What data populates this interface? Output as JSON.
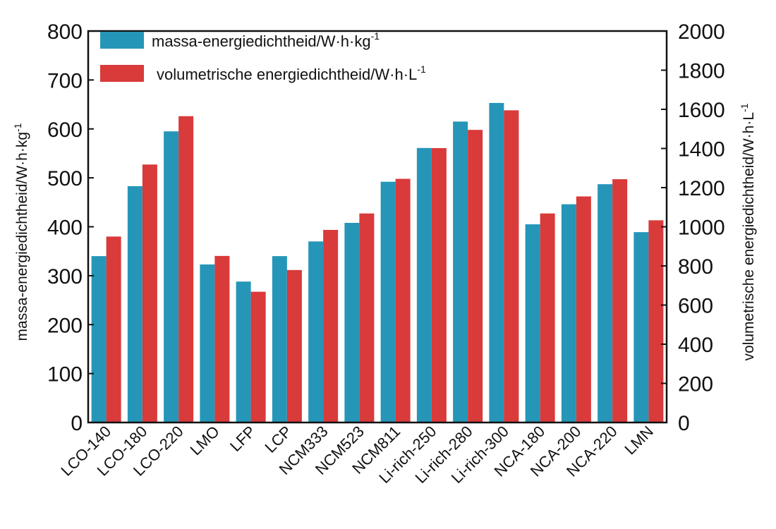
{
  "chart_data": {
    "type": "bar",
    "categories": [
      "LCO-140",
      "LCO-180",
      "LCO-220",
      "LMO",
      "LFP",
      "LCP",
      "NCM333",
      "NCM523",
      "NCM811",
      "Li-rich-250",
      "Li-rich-280",
      "Li-rich-300",
      "NCA-180",
      "NCA-200",
      "NCA-220",
      "LMN"
    ],
    "series": [
      {
        "name": "massa-energiedichtheid/W·h·kg",
        "name_sup": "-1",
        "axis": "left",
        "color": "#2596b8",
        "values": [
          340,
          483,
          595,
          323,
          288,
          340,
          370,
          408,
          492,
          561,
          615,
          653,
          405,
          446,
          487,
          389
        ]
      },
      {
        "name": "volumetrische energiedichtheid/W·h·L",
        "name_sup": "-1",
        "axis": "right",
        "color": "#d93a3a",
        "values": [
          950,
          1318,
          1565,
          851,
          668,
          779,
          984,
          1068,
          1245,
          1402,
          1495,
          1595,
          1068,
          1155,
          1243,
          1033
        ]
      }
    ],
    "ylabel": "massa-energiedichtheid/W·h·kg",
    "ylabel_sup": "-1",
    "y2label": "volumetrische energiedichtheid/W·h·L",
    "y2label_sup": "-1",
    "ylim": [
      0,
      800
    ],
    "y2lim": [
      0,
      2000
    ],
    "yticks": [
      0,
      100,
      200,
      300,
      400,
      500,
      600,
      700,
      800
    ],
    "y2ticks": [
      0,
      200,
      400,
      600,
      800,
      1000,
      1200,
      1400,
      1600,
      1800,
      2000
    ],
    "legend_position": "top-left",
    "grid": false
  }
}
